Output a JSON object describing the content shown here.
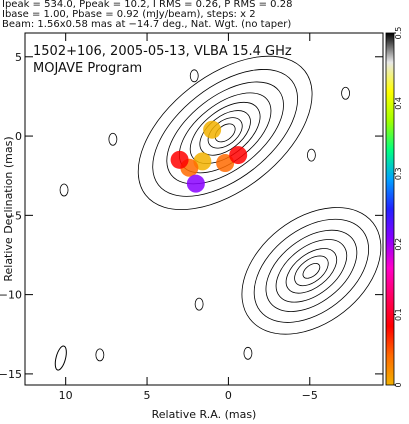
{
  "header": {
    "line1": "Ipeak = 534.0, Ppeak = 10.2, I RMS = 0.26, P RMS = 0.28",
    "line2": "Ibase = 1.00, Pbase = 0.92 (mJy/beam), steps: x 2",
    "line3": "Beam: 1.56x0.58 mas at −14.7 deg., Nat. Wgt. (no taper)"
  },
  "chart_data": {
    "type": "contour",
    "title": "1502+106, 2005-05-13, VLBA 15.4 GHz",
    "subtitle": "MOJAVE Program",
    "xlabel": "Relative R.A. (mas)",
    "ylabel": "Relative Declination (mas)",
    "xlim": [
      12.5,
      -9.5
    ],
    "ylim": [
      -15.7,
      6.5
    ],
    "x_ticks": [
      10,
      5,
      0,
      -5
    ],
    "x_tick_labels": [
      "10",
      "5",
      "0",
      "−5"
    ],
    "y_ticks": [
      5,
      0,
      -5,
      -10,
      -15
    ],
    "y_tick_labels": [
      "5",
      "0",
      "−5",
      "−10",
      "−15"
    ],
    "grid": false,
    "colorbar": {
      "label_values": [
        0,
        0.1,
        0.2,
        0.3,
        0.4,
        0.5
      ],
      "tick_labels": [
        "0",
        "0.1",
        "0.2",
        "0.3",
        "0.4",
        "0.5"
      ],
      "colors": [
        "#f2b100",
        "#ff6a00",
        "#ff0000",
        "#ff0060",
        "#ff00c8",
        "#8800ff",
        "#2222ff",
        "#00a0ff",
        "#00ff80",
        "#a0ff00",
        "#ffff00",
        "#e8e8e8",
        "#000000"
      ]
    },
    "core": {
      "x": 0.0,
      "y": 0.0
    },
    "contour_groups": [
      {
        "name": "core",
        "cx": 0.2,
        "cy": 0.2,
        "angle_deg": -38,
        "radii": [
          [
            6.2,
            3.6
          ],
          [
            5.2,
            2.9
          ],
          [
            4.2,
            2.3
          ],
          [
            3.3,
            1.8
          ],
          [
            2.5,
            1.4
          ],
          [
            1.8,
            1.05
          ],
          [
            1.2,
            0.75
          ],
          [
            0.7,
            0.45
          ]
        ]
      },
      {
        "name": "jet",
        "cx": -5.1,
        "cy": -8.5,
        "angle_deg": -38,
        "radii": [
          [
            4.8,
            3.3
          ],
          [
            4.0,
            2.6
          ],
          [
            3.2,
            2.0
          ],
          [
            2.5,
            1.5
          ],
          [
            1.8,
            1.05
          ],
          [
            1.2,
            0.7
          ],
          [
            0.6,
            0.35
          ]
        ]
      }
    ],
    "polarization": [
      {
        "x": 1.0,
        "y": 0.4,
        "value": 0.03
      },
      {
        "x": 1.6,
        "y": -1.6,
        "value": 0.04
      },
      {
        "x": 2.4,
        "y": -2.0,
        "value": 0.08
      },
      {
        "x": 3.0,
        "y": -1.5,
        "value": 0.09
      },
      {
        "x": 0.2,
        "y": -1.7,
        "value": 0.07
      },
      {
        "x": -0.6,
        "y": -1.2,
        "value": 0.12
      },
      {
        "x": 2.0,
        "y": -3.0,
        "value": 0.22
      }
    ],
    "isolated_blobs": [
      {
        "x": 2.1,
        "y": 3.8
      },
      {
        "x": 7.1,
        "y": -0.2
      },
      {
        "x": 10.1,
        "y": -3.4
      },
      {
        "x": -5.1,
        "y": -1.2
      },
      {
        "x": -7.2,
        "y": 2.7
      },
      {
        "x": 7.9,
        "y": -13.8
      },
      {
        "x": 1.8,
        "y": -10.6
      },
      {
        "x": -1.2,
        "y": -13.7
      }
    ],
    "beam": {
      "x": 10.3,
      "y": -14.0,
      "major": 1.56,
      "minor": 0.58,
      "pa_deg": -14.7
    }
  }
}
